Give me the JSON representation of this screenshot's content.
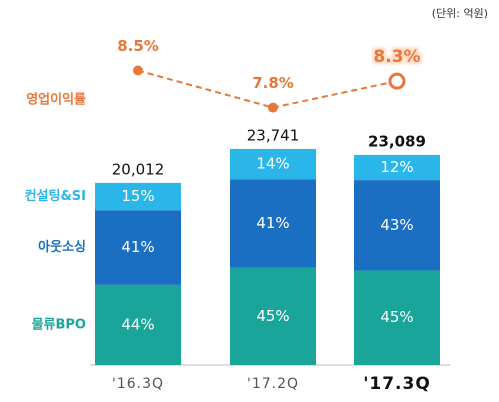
{
  "chart_data": {
    "type": "bar",
    "unit_note": "(단위: 억원)",
    "categories": [
      "'16.3Q",
      "'17.2Q",
      "'17.3Q"
    ],
    "totals": [
      20012,
      23741,
      23089
    ],
    "total_labels": [
      "20,012",
      "23,741",
      "23,089"
    ],
    "ylim": [
      0,
      30000
    ],
    "series": [
      {
        "name": "물류BPO",
        "color": "#1aa59a",
        "values": [
          44,
          45,
          45
        ],
        "value_labels": [
          "44%",
          "45%",
          "45%"
        ]
      },
      {
        "name": "아웃소싱",
        "color": "#1b6fc2",
        "values": [
          41,
          41,
          43
        ],
        "value_labels": [
          "41%",
          "41%",
          "43%"
        ]
      },
      {
        "name": "컨설팅&SI",
        "color": "#2bb6ea",
        "values": [
          15,
          14,
          12
        ],
        "value_labels": [
          "15%",
          "14%",
          "12%"
        ]
      }
    ],
    "line": {
      "type": "line",
      "name": "영업이익률",
      "color": "#e8773a",
      "axis": "y2",
      "values": [
        8.5,
        7.8,
        8.3
      ],
      "value_labels": [
        "8.5%",
        "7.8%",
        "8.3%"
      ]
    },
    "y2lim": [
      7,
      9
    ]
  }
}
